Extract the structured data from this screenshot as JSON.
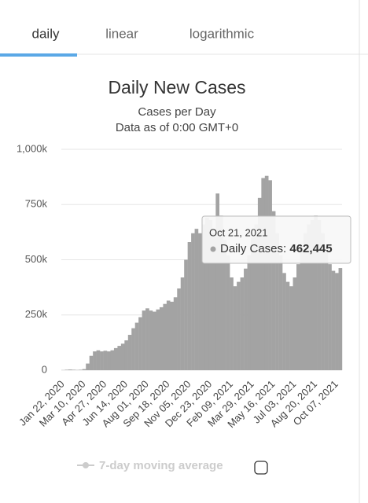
{
  "tabs": [
    "daily",
    "linear",
    "logarithmic"
  ],
  "chart_data": {
    "type": "bar",
    "title": "Daily New Cases",
    "subtitle": "Cases per Day",
    "note": "Data as of 0:00 GMT+0",
    "categories": [
      "Jan 22, 2020",
      null,
      null,
      null,
      null,
      null,
      "Mar 10, 2020",
      null,
      null,
      null,
      null,
      null,
      "Apr 27, 2020",
      null,
      null,
      null,
      null,
      null,
      "Jun 14, 2020",
      null,
      null,
      null,
      null,
      null,
      "Aug 01, 2020",
      null,
      null,
      null,
      null,
      null,
      "Sep 18, 2020",
      null,
      null,
      null,
      null,
      null,
      "Nov 05, 2020",
      null,
      null,
      null,
      null,
      null,
      "Dec 23, 2020",
      null,
      null,
      null,
      null,
      null,
      "Feb 09, 2021",
      null,
      null,
      null,
      null,
      null,
      "Mar 29, 2021",
      null,
      null,
      null,
      null,
      null,
      "May 16, 2021",
      null,
      null,
      null,
      null,
      null,
      "Jul 03, 2021",
      null,
      null,
      null,
      null,
      null,
      "Aug 20, 2021",
      null,
      null,
      null,
      null,
      null,
      "Oct 07, 2021",
      null
    ],
    "values": [
      500,
      2000,
      3000,
      2000,
      1000,
      2000,
      5000,
      30000,
      65000,
      85000,
      90000,
      85000,
      88000,
      85000,
      90000,
      100000,
      110000,
      120000,
      135000,
      160000,
      190000,
      215000,
      240000,
      270000,
      280000,
      270000,
      265000,
      275000,
      285000,
      300000,
      315000,
      310000,
      330000,
      370000,
      420000,
      500000,
      580000,
      620000,
      640000,
      620000,
      660000,
      690000,
      680000,
      620000,
      800000,
      700000,
      590000,
      520000,
      420000,
      380000,
      400000,
      420000,
      460000,
      520000,
      600000,
      660000,
      780000,
      870000,
      880000,
      860000,
      720000,
      620000,
      520000,
      440000,
      400000,
      380000,
      420000,
      480000,
      550000,
      620000,
      660000,
      680000,
      700000,
      680000,
      620000,
      560000,
      480000,
      450000,
      440000,
      462445
    ],
    "color": "#a3a3a3",
    "ylim": [
      0,
      1000000
    ],
    "yticks": [
      0,
      {
        "value": 250000,
        "label": "250k"
      },
      {
        "value": 500000,
        "label": "500k"
      },
      {
        "value": 750000,
        "label": "750k"
      },
      {
        "value": 1000000,
        "label": "1,000k"
      }
    ],
    "grid": true,
    "tooltip": {
      "date": "Oct 21, 2021",
      "label": "Daily Cases:",
      "value": {
        "value": 462445,
        "label": "462,445"
      }
    },
    "legend_items": [
      {
        "name": "7-day moving average",
        "enabled": false
      }
    ]
  }
}
